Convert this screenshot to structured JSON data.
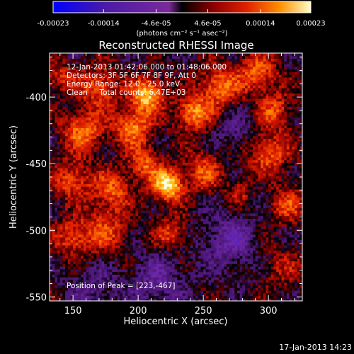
{
  "chart_data": {
    "type": "heatmap",
    "title": "Reconstructed RHESSI Image",
    "xlabel": "Heliocentric X (arcsec)",
    "ylabel": "Heliocentric Y (arcsec)",
    "xlim": [
      132,
      326
    ],
    "ylim": [
      -553,
      -367
    ],
    "xticks": [
      150,
      200,
      250,
      300
    ],
    "yticks": [
      -400,
      -450,
      -500,
      -550
    ],
    "colorbar": {
      "range": [
        -0.00023,
        0.00023
      ],
      "tick_labels": [
        "-0.00023",
        "-0.00014",
        "-4.6e-05",
        "4.6e-05",
        "0.00014",
        "0.00023"
      ],
      "tick_values": [
        -0.00023,
        -0.00014,
        -4.6e-05,
        4.6e-05,
        0.00014,
        0.00023
      ],
      "unit_label": "(photons cm⁻² s⁻¹ asec⁻²)"
    },
    "annotations": [
      "12-Jan-2013 01:42:06.000 to 01:48:06.000",
      "Detectors: 3F 5F 6F 7F 8F 9F, Att 0",
      "Energy Range: 12.0 - 25.0 keV",
      "Clean     Total counts: 6.47E+03"
    ],
    "peak_label": "Position of Peak = [223,-467]",
    "peak": {
      "x": 223,
      "y": -467
    },
    "sources": [
      {
        "x": 223,
        "y": -466,
        "sigma": 8,
        "amp": 0.00023
      },
      {
        "x": 207,
        "y": -398,
        "sigma": 9,
        "amp": 0.00019
      },
      {
        "x": 196,
        "y": -422,
        "sigma": 10,
        "amp": 0.00015
      },
      {
        "x": 242,
        "y": -412,
        "sigma": 9,
        "amp": 0.00016
      },
      {
        "x": 262,
        "y": -392,
        "sigma": 11,
        "amp": 0.00014
      },
      {
        "x": 292,
        "y": -382,
        "sigma": 10,
        "amp": 0.00013
      },
      {
        "x": 170,
        "y": -392,
        "sigma": 10,
        "amp": 0.00013
      },
      {
        "x": 158,
        "y": -425,
        "sigma": 11,
        "amp": 0.00014
      },
      {
        "x": 150,
        "y": -462,
        "sigma": 10,
        "amp": 0.00012
      },
      {
        "x": 180,
        "y": -470,
        "sigma": 10,
        "amp": 0.00012
      },
      {
        "x": 175,
        "y": -500,
        "sigma": 12,
        "amp": 0.0001
      },
      {
        "x": 150,
        "y": -505,
        "sigma": 10,
        "amp": 0.00011
      },
      {
        "x": 205,
        "y": -450,
        "sigma": 9,
        "amp": 0.00012
      },
      {
        "x": 250,
        "y": -455,
        "sigma": 10,
        "amp": 0.00011
      },
      {
        "x": 300,
        "y": -442,
        "sigma": 11,
        "amp": 0.00012
      },
      {
        "x": 315,
        "y": -480,
        "sigma": 10,
        "amp": 0.0001
      },
      {
        "x": 305,
        "y": -410,
        "sigma": 9,
        "amp": 0.00011
      },
      {
        "x": 225,
        "y": -502,
        "sigma": 9,
        "amp": 0.0001
      },
      {
        "x": 140,
        "y": -385,
        "sigma": 8,
        "amp": 9e-05
      },
      {
        "x": 280,
        "y": -470,
        "sigma": 8,
        "amp": 8e-05
      },
      {
        "x": 270,
        "y": -508,
        "sigma": 14,
        "amp": -0.0001
      },
      {
        "x": 215,
        "y": -538,
        "sigma": 15,
        "amp": -8e-05
      },
      {
        "x": 165,
        "y": -543,
        "sigma": 14,
        "amp": -6e-05
      },
      {
        "x": 310,
        "y": -528,
        "sigma": 11,
        "amp": 6e-05
      },
      {
        "x": 275,
        "y": -425,
        "sigma": 10,
        "amp": -6e-05
      },
      {
        "x": 290,
        "y": -468,
        "sigma": 8,
        "amp": -4e-05
      }
    ]
  },
  "footer": {
    "timestamp": "17-Jan-2013 14:23"
  }
}
